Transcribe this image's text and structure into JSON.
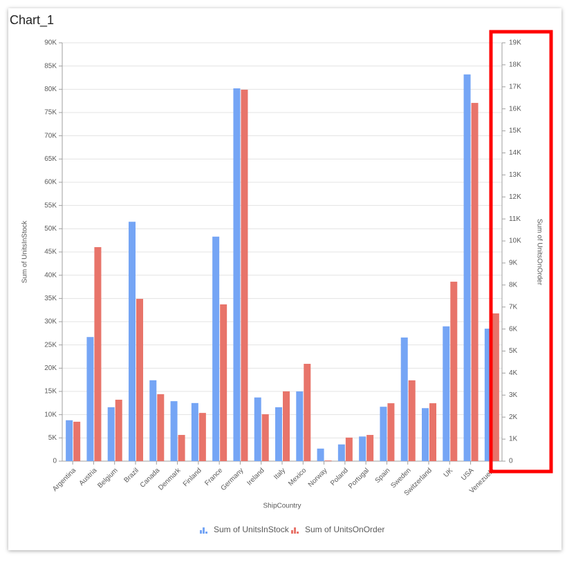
{
  "chart_data": {
    "type": "bar",
    "title": "Chart_1",
    "x_label": "ShipCountry",
    "y_label": "Sum of UnitsInStock",
    "y2_label": "Sum of UnitsOnOrder",
    "categories": [
      "Argentina",
      "Austria",
      "Belgium",
      "Brazil",
      "Canada",
      "Denmark",
      "Finland",
      "France",
      "Germany",
      "Ireland",
      "Italy",
      "Mexico",
      "Norway",
      "Poland",
      "Portugal",
      "Spain",
      "Sweden",
      "Switzerland",
      "UK",
      "USA",
      "Venezuela"
    ],
    "series": [
      {
        "name": "Sum of UnitsInStock",
        "color": "#75a5f5",
        "axis": "y",
        "values": [
          8800,
          26700,
          11600,
          51500,
          17400,
          12900,
          12500,
          48300,
          80200,
          13700,
          11600,
          15000,
          2700,
          3600,
          5300,
          11700,
          26600,
          11400,
          29000,
          83200,
          28500
        ]
      },
      {
        "name": "Sum of UnitsOnOrder",
        "color": "#e8746a",
        "axis": "y2",
        "values": [
          1790,
          9720,
          2790,
          7370,
          3040,
          1190,
          2190,
          7120,
          16870,
          2130,
          3170,
          4420,
          30,
          1070,
          1190,
          2630,
          3670,
          2630,
          8150,
          16270,
          6710
        ]
      }
    ],
    "ylim": [
      0,
      90000
    ],
    "yticks": [
      0,
      {
        "value": 5000,
        "label": "5K"
      },
      {
        "value": 10000,
        "label": "10K"
      },
      {
        "value": 15000,
        "label": "15K"
      },
      {
        "value": 20000,
        "label": "20K"
      },
      {
        "value": 25000,
        "label": "25K"
      },
      {
        "value": 30000,
        "label": "30K"
      },
      {
        "value": 35000,
        "label": "35K"
      },
      {
        "value": 40000,
        "label": "40K"
      },
      {
        "value": 45000,
        "label": "45K"
      },
      {
        "value": 50000,
        "label": "50K"
      },
      {
        "value": 55000,
        "label": "55K"
      },
      {
        "value": 60000,
        "label": "60K"
      },
      {
        "value": 65000,
        "label": "65K"
      },
      {
        "value": 70000,
        "label": "70K"
      },
      {
        "value": 75000,
        "label": "75K"
      },
      {
        "value": 80000,
        "label": "80K"
      },
      {
        "value": 85000,
        "label": "85K"
      },
      {
        "value": 90000,
        "label": "90K"
      }
    ],
    "y2lim": [
      0,
      19000
    ],
    "y2ticks": [
      0,
      {
        "value": 1000,
        "label": "1K"
      },
      {
        "value": 2000,
        "label": "2K"
      },
      {
        "value": 3000,
        "label": "3K"
      },
      {
        "value": 4000,
        "label": "4K"
      },
      {
        "value": 5000,
        "label": "5K"
      },
      {
        "value": 6000,
        "label": "6K"
      },
      {
        "value": 7000,
        "label": "7K"
      },
      {
        "value": 8000,
        "label": "8K"
      },
      {
        "value": 9000,
        "label": "9K"
      },
      {
        "value": 10000,
        "label": "10K"
      },
      {
        "value": 11000,
        "label": "11K"
      },
      {
        "value": 12000,
        "label": "12K"
      },
      {
        "value": 13000,
        "label": "13K"
      },
      {
        "value": 14000,
        "label": "14K"
      },
      {
        "value": 15000,
        "label": "15K"
      },
      {
        "value": 16000,
        "label": "16K"
      },
      {
        "value": 17000,
        "label": "17K"
      },
      {
        "value": 18000,
        "label": "18K"
      },
      {
        "value": 19000,
        "label": "19K"
      }
    ],
    "grid": true,
    "legend": "bottom"
  }
}
